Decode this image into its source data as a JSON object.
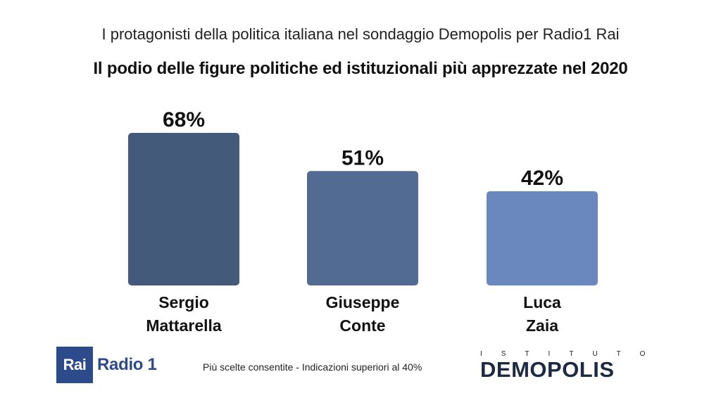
{
  "header": {
    "subtitle": "I protagonisti della politica italiana nel sondaggio Demopolis per Radio1 Rai",
    "title": "Il podio delle figure politiche ed istituzionali più apprezzate nel 2020"
  },
  "chart_data": {
    "type": "bar",
    "categories": [
      "Sergio\nMattarella",
      "Giuseppe\nConte",
      "Luca\nZaia"
    ],
    "values": [
      68,
      51,
      42
    ],
    "value_labels": [
      "68%",
      "51%",
      "42%"
    ],
    "colors": [
      "#435a7a",
      "#526b93",
      "#6a88bd"
    ],
    "ylim": [
      0,
      70
    ],
    "grid": false,
    "xlabel": "",
    "ylabel": ""
  },
  "footer": {
    "note": "Più scelte consentite - Indicazioni superiori al 40%",
    "rai_logo_box": "Rai",
    "rai_logo_text": "Radio 1",
    "demopolis_top": "ISTITUTO",
    "demopolis_main_1": "DEM",
    "demopolis_main_o": "O",
    "demopolis_main_2": "POLIS"
  }
}
